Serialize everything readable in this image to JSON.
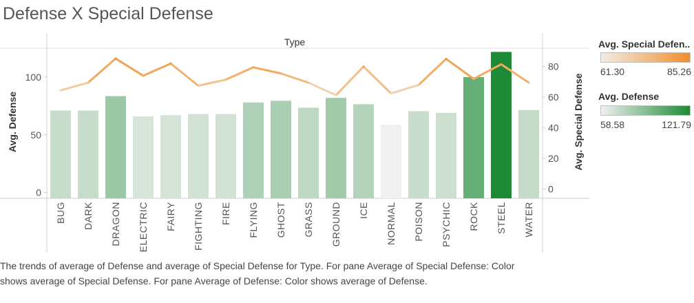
{
  "title": "Defense X Special Defense",
  "caption": "The trends of average of Defense and average of Special Defense for Type.  For pane Average of Special Defense:  Color shows average of Special Defense.  For pane Average of Defense:  Color shows average of Defense.",
  "colors": {
    "bar_low": "#f0f0f0",
    "bar_high": "#1e8a36",
    "line_low": "#f1ede5",
    "line_high": "#f28e2b"
  },
  "legends": {
    "special_defense": {
      "title": "Avg. Special Defen..",
      "min": "61.30",
      "max": "85.26"
    },
    "defense": {
      "title": "Avg. Defense",
      "min": "58.58",
      "max": "121.79"
    }
  },
  "chart_data": {
    "type": "bar",
    "title": "Defense X Special Defense",
    "xlabel": "Type",
    "ylabel": "Avg. Defense",
    "y2label": "Avg. Special Defense",
    "categories": [
      "BUG",
      "DARK",
      "DRAGON",
      "ELECTRIC",
      "FAIRY",
      "FIGHTING",
      "FIRE",
      "FLYING",
      "GHOST",
      "GRASS",
      "GROUND",
      "ICE",
      "NORMAL",
      "POISON",
      "PSYCHIC",
      "ROCK",
      "STEEL",
      "WATER"
    ],
    "series": [
      {
        "name": "Avg. Defense",
        "type": "bar",
        "axis": "left",
        "values": [
          71.0,
          71.0,
          83.5,
          66.0,
          67.0,
          68.0,
          68.0,
          78.0,
          79.5,
          73.5,
          82.0,
          76.5,
          58.58,
          70.5,
          69.0,
          100.0,
          121.79,
          71.5
        ]
      },
      {
        "name": "Avg. Special Defense",
        "type": "line",
        "axis": "right",
        "values": [
          64.5,
          69.5,
          85.26,
          74.0,
          82.0,
          67.5,
          71.5,
          79.5,
          75.5,
          69.5,
          61.3,
          80.0,
          62.5,
          68.0,
          85.0,
          72.0,
          81.5,
          69.5
        ]
      }
    ],
    "y_ticks": [
      "0",
      "50",
      "100"
    ],
    "y2_ticks": [
      "0",
      "20",
      "40",
      "60",
      "80"
    ],
    "ylim": [
      -5,
      125
    ],
    "y2lim": [
      -6,
      92
    ],
    "legend_placement": "right",
    "grid": false
  }
}
